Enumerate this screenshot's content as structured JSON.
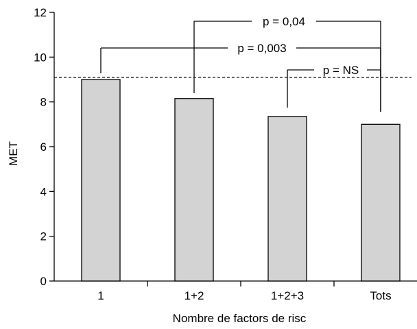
{
  "chart_data": {
    "type": "bar",
    "categories": [
      "1",
      "1+2",
      "1+2+3",
      "Tots"
    ],
    "values": [
      9.0,
      8.15,
      7.35,
      7.0
    ],
    "xlabel": "Nombre de factors de risc",
    "ylabel": "MET",
    "ylim": [
      0,
      12
    ],
    "yticks": [
      "0",
      "2",
      "4",
      "6",
      "8",
      "10",
      "12"
    ],
    "grid": false,
    "bar_color": "#d3d3d3",
    "reference_line": {
      "value": 9.1,
      "style": "dashed"
    },
    "comparisons": [
      {
        "label": "p = 0,04",
        "from": "1+2",
        "to": "Tots"
      },
      {
        "label": "p = 0,003",
        "from": "1",
        "to": "Tots"
      },
      {
        "label": "p = NS",
        "from": "1+2+3",
        "to": "Tots"
      }
    ]
  }
}
